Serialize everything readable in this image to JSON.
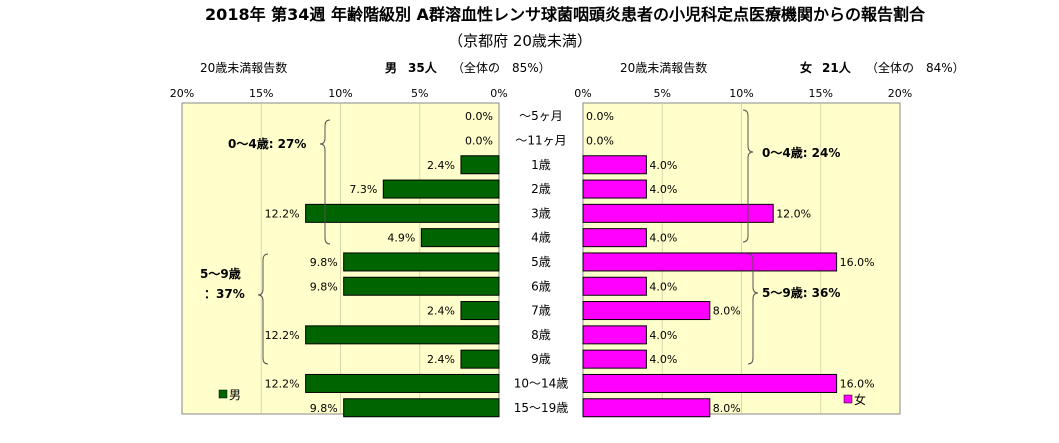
{
  "title": "2018年 第34週 年齢階級別 A群溶血性レンサ球菌咽頭炎患者の小児科定点医療機関からの報告割合",
  "subtitle": "（京都府 20歳未満）",
  "colors": {
    "male": "#006400",
    "female": "#ff00ff",
    "background": "#ffffcc"
  },
  "male_header": {
    "caption": "20歳未満報告数",
    "label": "男",
    "count": "35人",
    "share": "（全体の　85%）"
  },
  "female_header": {
    "caption": "20歳未満報告数",
    "label": "女",
    "count": "21人",
    "share": "（全体の　84%）"
  },
  "brackets": {
    "male_0_4": "0～4歳: 27%",
    "male_5_9_a": "5～9歳",
    "male_5_9_b": "：37%",
    "female_0_4": "0～4歳: 24%",
    "female_5_9": "5～9歳: 36%"
  },
  "chart_data": {
    "type": "bar",
    "orientation": "horizontal-butterfly",
    "categories": [
      "～5ヶ月",
      "～11ヶ月",
      "1歳",
      "2歳",
      "3歳",
      "4歳",
      "5歳",
      "6歳",
      "7歳",
      "8歳",
      "9歳",
      "10～14歳",
      "15～19歳"
    ],
    "series": [
      {
        "name": "男",
        "values": [
          0.0,
          0.0,
          2.4,
          7.3,
          12.2,
          4.9,
          9.8,
          9.8,
          2.4,
          12.2,
          2.4,
          12.2,
          9.8
        ],
        "labels": [
          "0.0%",
          "0.0%",
          "2.4%",
          "7.3%",
          "12.2%",
          "4.9%",
          "9.8%",
          "9.8%",
          "2.4%",
          "12.2%",
          "2.4%",
          "12.2%",
          "9.8%"
        ]
      },
      {
        "name": "女",
        "values": [
          0.0,
          0.0,
          4.0,
          4.0,
          12.0,
          4.0,
          16.0,
          4.0,
          8.0,
          4.0,
          4.0,
          16.0,
          8.0
        ],
        "labels": [
          "0.0%",
          "0.0%",
          "4.0%",
          "4.0%",
          "12.0%",
          "4.0%",
          "16.0%",
          "4.0%",
          "8.0%",
          "4.0%",
          "4.0%",
          "16.0%",
          "8.0%"
        ]
      }
    ],
    "xlim": [
      0,
      20
    ],
    "male_ticks": [
      "20%",
      "15%",
      "10%",
      "5%",
      "0%"
    ],
    "female_ticks": [
      "0%",
      "5%",
      "10%",
      "15%",
      "20%"
    ],
    "grid": true,
    "legend": "bottom"
  }
}
